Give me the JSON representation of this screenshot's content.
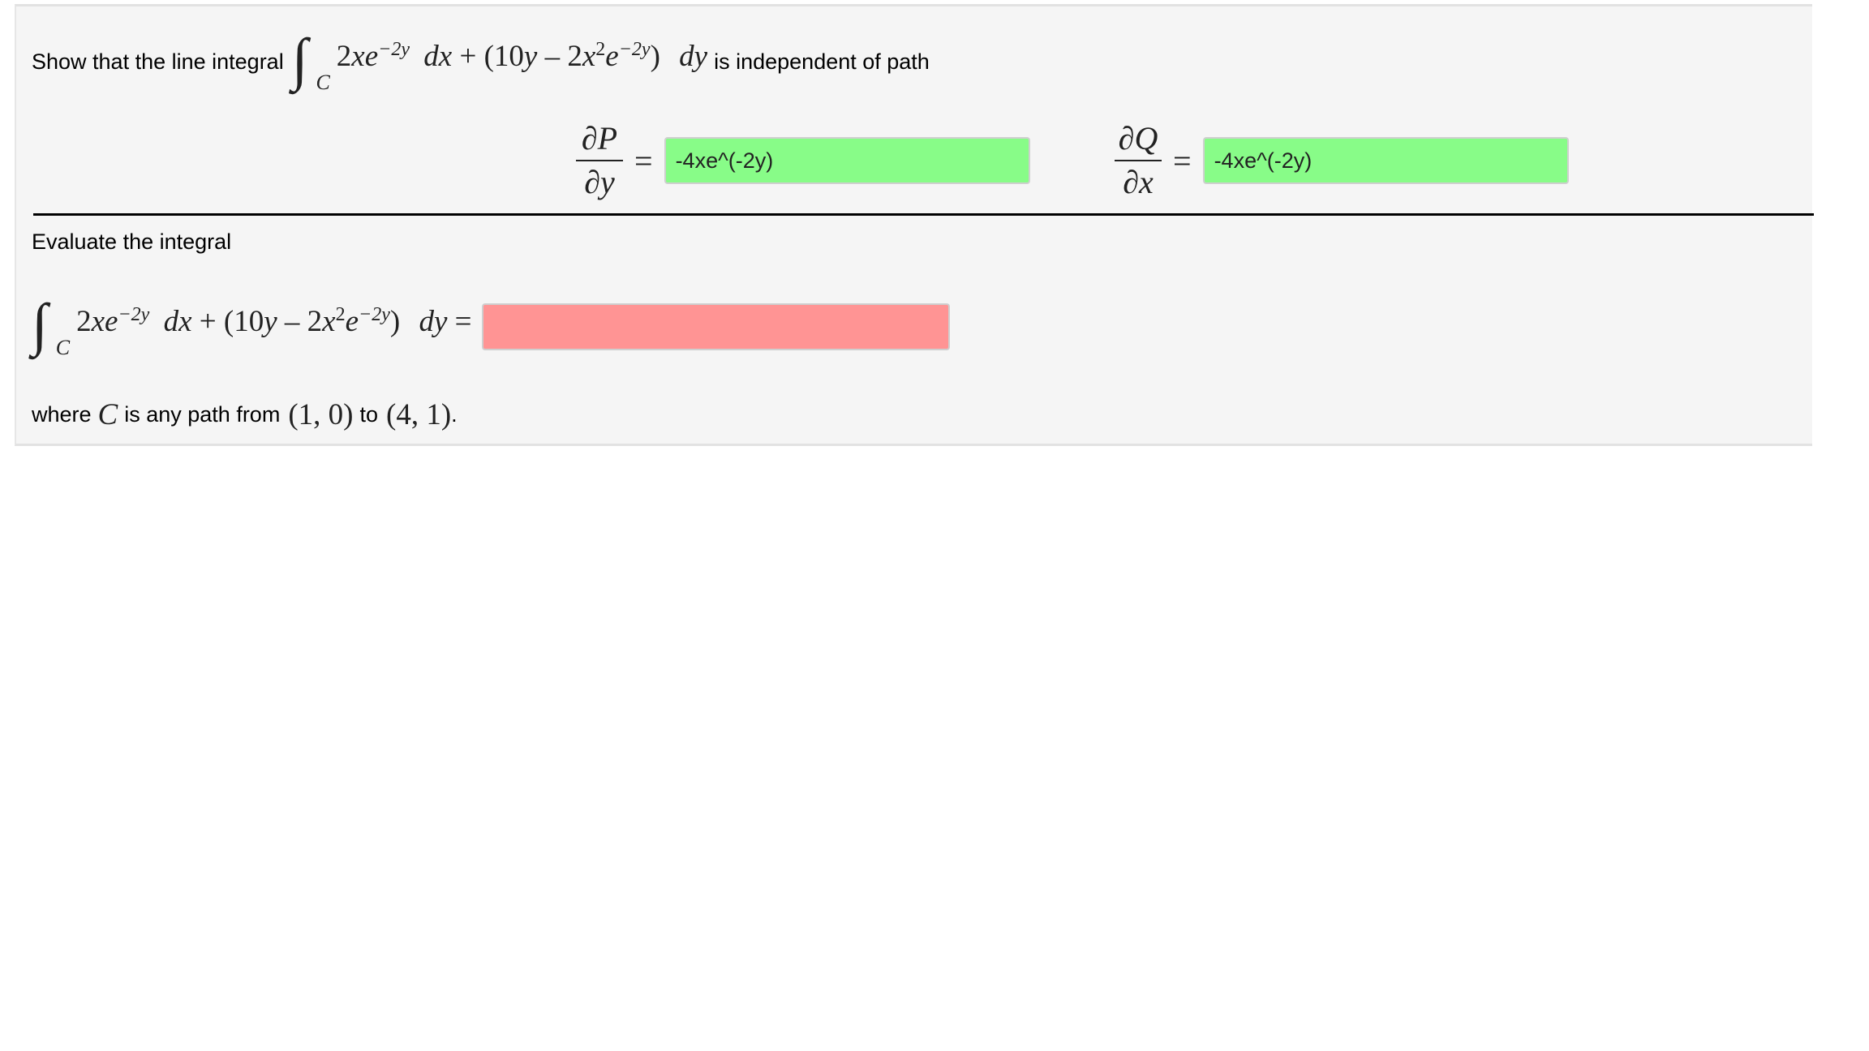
{
  "part1": {
    "prefix": "Show that the line integral",
    "suffix": "is independent of path",
    "integral": {
      "sign": "∫",
      "sub": "C",
      "a": "2",
      "b": "x",
      "c": "e",
      "sup1": "−2y",
      "dx": "dx",
      "plus": "+",
      "lp": "(",
      "ten": "10",
      "y": "y",
      "minus": "–",
      "two": "2",
      "x": "x",
      "sq": "2",
      "e": "e",
      "sup2": "−2y",
      "rp": ")",
      "dy": "dy"
    },
    "dPdy": {
      "num": "∂P",
      "den": "∂y",
      "eq": "=",
      "value": "-4xe^(-2y)",
      "status": "correct",
      "color": "#88fc88"
    },
    "dQdx": {
      "num": "∂Q",
      "den": "∂x",
      "eq": "=",
      "value": "-4xe^(-2y)",
      "status": "correct",
      "color": "#88fc88"
    }
  },
  "part2": {
    "heading": "Evaluate the integral",
    "integral": {
      "sign": "∫",
      "sub": "C",
      "a": "2",
      "b": "x",
      "c": "e",
      "sup1": "−2y",
      "dx": "dx",
      "plus": "+",
      "lp": "(",
      "ten": "10",
      "y": "y",
      "minus": "–",
      "two": "2",
      "x": "x",
      "sq": "2",
      "e": "e",
      "sup2": "−2y",
      "rp": ")",
      "dy": "dy",
      "eq": "="
    },
    "answer": {
      "value": "",
      "status": "incorrect",
      "color": "#ff9494"
    },
    "where": "where",
    "C": "C",
    "path_text": "is any path from",
    "from": "(1, 0)",
    "to_word": "to",
    "to": "(4, 1)",
    "period": "."
  }
}
